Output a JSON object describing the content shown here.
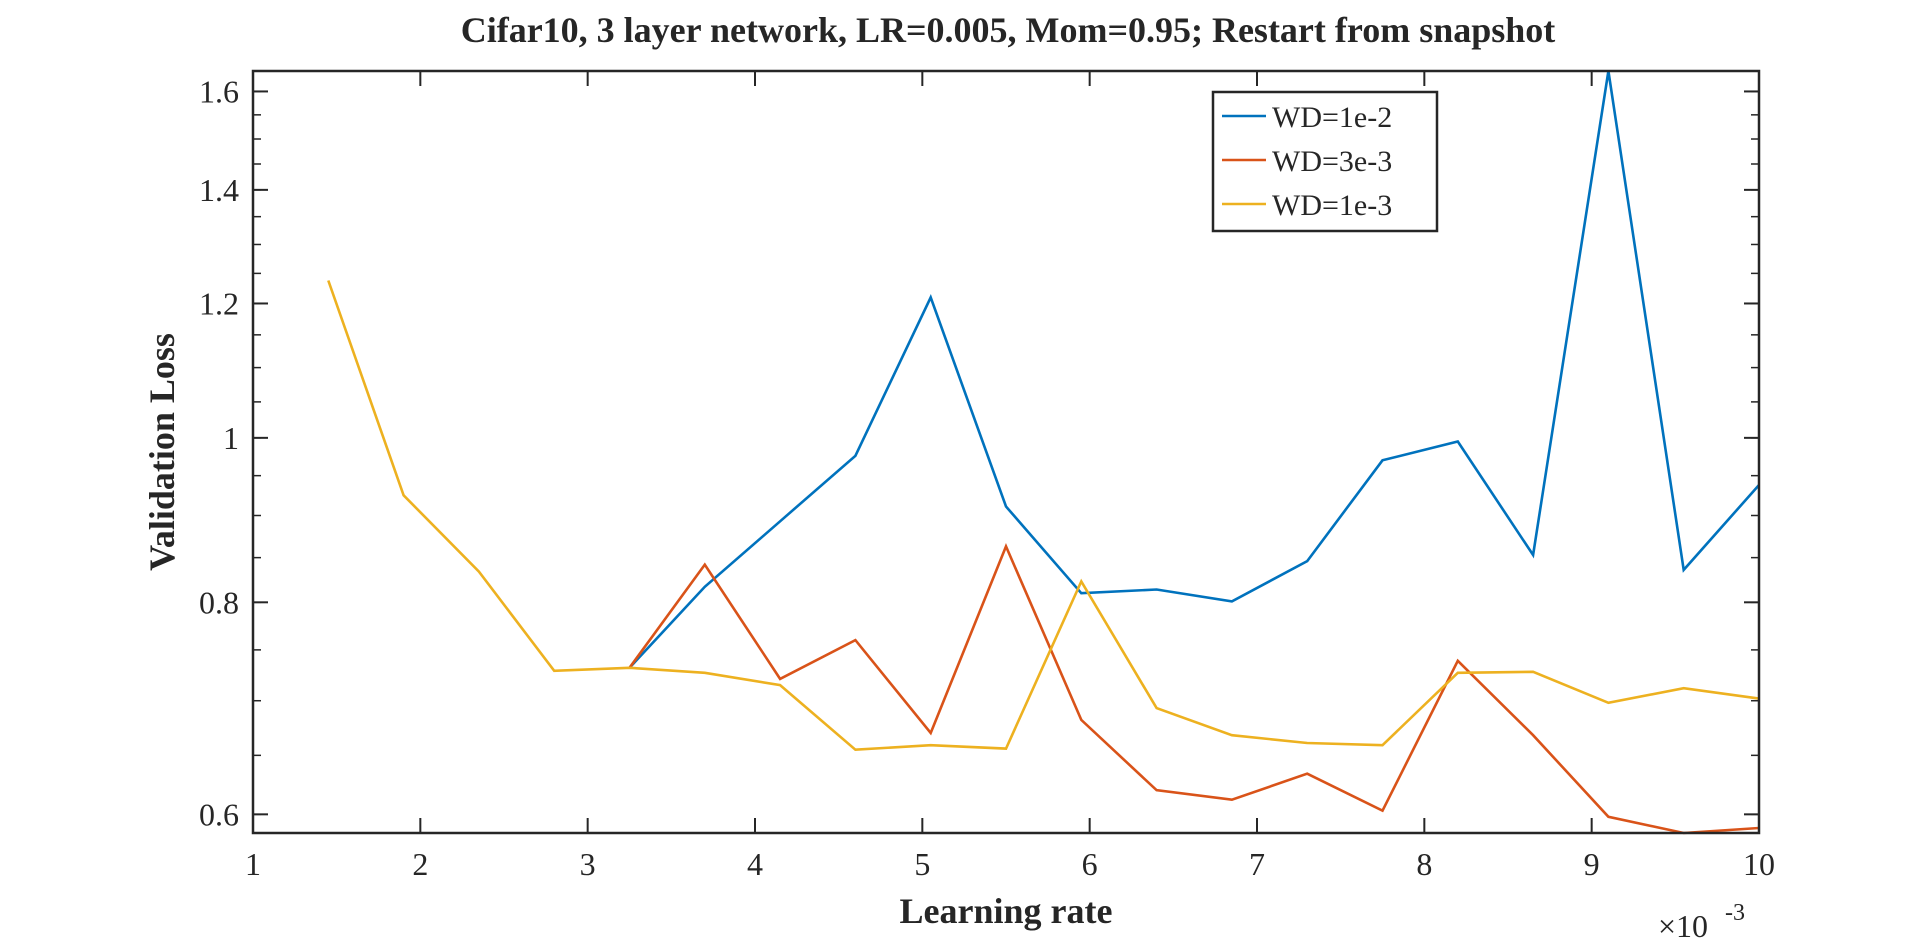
{
  "chart_data": {
    "type": "line",
    "title": "Cifar10, 3 layer network, LR=0.005, Mom=0.95; Restart from snapshot",
    "xlabel": "Learning rate",
    "ylabel": "Validation Loss",
    "x_exponent_base": "×10",
    "x_exponent_power": "-3",
    "xlim": [
      1,
      10
    ],
    "ylim": [
      0.585,
      1.645
    ],
    "yscale": "log",
    "xticks": [
      1,
      2,
      3,
      4,
      5,
      6,
      7,
      8,
      9,
      10
    ],
    "xtick_labels": [
      "1",
      "2",
      "3",
      "4",
      "5",
      "6",
      "7",
      "8",
      "9",
      "10"
    ],
    "yticks": [
      0.6,
      0.8,
      1.0,
      1.2,
      1.4,
      1.6
    ],
    "ytick_labels": [
      "0.6",
      "0.8",
      "1",
      "1.2",
      "1.4",
      "1.6"
    ],
    "grid": false,
    "legend_position": "top-right",
    "series": [
      {
        "name": "WD=1e-2",
        "color": "#0072BD",
        "x": [
          3.25,
          3.7,
          4.15,
          4.6,
          5.05,
          5.5,
          5.95,
          6.4,
          6.85,
          7.3,
          7.75,
          8.2,
          8.65,
          9.1,
          9.55,
          10.0
        ],
        "y": [
          0.732,
          0.817,
          0.893,
          0.976,
          1.21,
          0.911,
          0.81,
          0.814,
          0.801,
          0.846,
          0.97,
          0.995,
          0.853,
          1.645,
          0.836,
          0.938
        ]
      },
      {
        "name": "WD=3e-3",
        "color": "#D95319",
        "x": [
          3.25,
          3.7,
          4.15,
          4.6,
          5.05,
          5.5,
          5.95,
          6.4,
          6.85,
          7.3,
          7.75,
          8.2,
          8.65,
          9.1,
          9.55,
          10.0
        ],
        "y": [
          0.732,
          0.842,
          0.721,
          0.76,
          0.67,
          0.863,
          0.682,
          0.62,
          0.612,
          0.634,
          0.603,
          0.739,
          0.668,
          0.598,
          0.585,
          0.589
        ]
      },
      {
        "name": "WD=1e-3",
        "color": "#EDB120",
        "x": [
          1.45,
          1.9,
          2.35,
          2.8,
          3.25,
          3.7,
          4.15,
          4.6,
          5.05,
          5.5,
          5.95,
          6.4,
          6.85,
          7.3,
          7.75,
          8.2,
          8.65,
          9.1,
          9.55,
          10.0
        ],
        "y": [
          1.238,
          0.925,
          0.834,
          0.729,
          0.732,
          0.727,
          0.715,
          0.655,
          0.659,
          0.656,
          0.823,
          0.693,
          0.668,
          0.661,
          0.659,
          0.727,
          0.728,
          0.698,
          0.712,
          0.702
        ]
      }
    ]
  }
}
